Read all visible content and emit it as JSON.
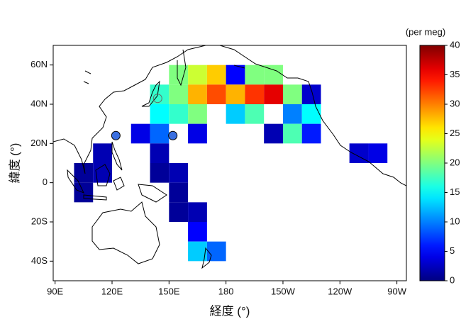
{
  "chart_data": {
    "type": "map",
    "xlabel": "経度 (°)",
    "ylabel": "緯度 (°)",
    "colorbar_label": "(per meg)",
    "colormap": "jet",
    "xlim": [
      89,
      275
    ],
    "ylim": [
      -50,
      70
    ],
    "xticks": [
      {
        "value": 90,
        "label": "90E"
      },
      {
        "value": 120,
        "label": "120E"
      },
      {
        "value": 150,
        "label": "150E"
      },
      180,
      {
        "value": 210,
        "label": "150W"
      },
      {
        "value": 240,
        "label": "120W"
      },
      {
        "value": 270,
        "label": "90W"
      }
    ],
    "yticks": [
      {
        "value": 60,
        "label": "60N"
      },
      {
        "value": 40,
        "label": "40N"
      },
      {
        "value": 20,
        "label": "20N"
      },
      0,
      {
        "value": -20,
        "label": "20S"
      },
      {
        "value": -40,
        "label": "40S"
      }
    ],
    "clim": [
      0,
      40
    ],
    "cticks": [
      0,
      5,
      10,
      15,
      20,
      25,
      30,
      35,
      40
    ],
    "cells": {
      "x": [
        155,
        165,
        175,
        185,
        195,
        205,
        145,
        155,
        165,
        175,
        185,
        195,
        205,
        215,
        225,
        145,
        155,
        165,
        185,
        195,
        215,
        225,
        135,
        145,
        165,
        205,
        215,
        225,
        115,
        145,
        250,
        260,
        105,
        115,
        145,
        155,
        105,
        155,
        155,
        165,
        165,
        165,
        175
      ],
      "y": [
        55,
        55,
        55,
        55,
        55,
        55,
        45,
        45,
        45,
        45,
        45,
        45,
        45,
        45,
        45,
        35,
        35,
        35,
        35,
        35,
        35,
        35,
        25,
        25,
        25,
        25,
        25,
        25,
        15,
        15,
        15,
        15,
        5,
        5,
        5,
        5,
        -5,
        -5,
        -15,
        -15,
        -25,
        -35,
        -35
      ],
      "values": [
        20,
        23,
        27,
        5,
        20,
        20,
        17,
        20,
        28,
        32,
        28,
        33,
        36,
        20,
        3,
        15,
        17,
        20,
        13,
        18,
        10,
        15,
        4,
        9,
        4,
        2,
        18,
        6,
        2,
        2,
        3,
        4,
        1,
        2,
        1,
        2,
        1,
        1,
        1,
        2,
        5,
        13,
        9
      ]
    },
    "stations": {
      "x": [
        122,
        152,
        144
      ],
      "y": [
        24,
        24,
        43
      ],
      "filled": [
        true,
        true,
        false
      ]
    }
  }
}
